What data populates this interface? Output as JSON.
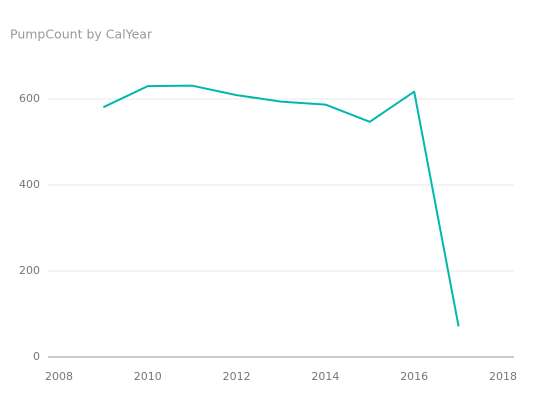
{
  "chart_data": {
    "type": "line",
    "title": "PumpCount by CalYear",
    "x": [
      2009,
      2010,
      2011,
      2012,
      2013,
      2014,
      2015,
      2016,
      2017
    ],
    "series": [
      {
        "name": "PumpCount",
        "color": "#01B8AA",
        "values": [
          581,
          630,
          631,
          609,
          594,
          587,
          547,
          617,
          71
        ]
      }
    ],
    "xlim": [
      2008,
      2018
    ],
    "xticks": [
      2008,
      2010,
      2012,
      2014,
      2016,
      2018
    ],
    "ylim": [
      0,
      700
    ],
    "yticks": [
      0,
      200,
      400,
      600
    ],
    "grid": true
  }
}
